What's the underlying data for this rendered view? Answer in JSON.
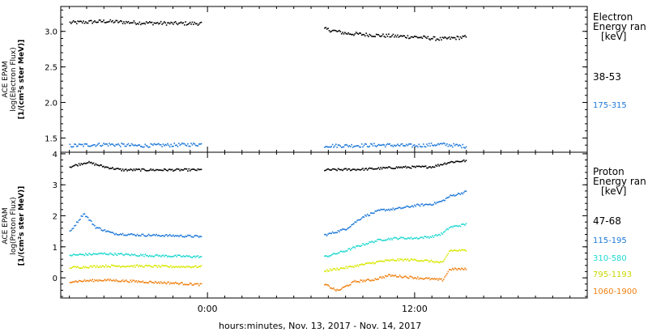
{
  "xlabel": "hours:minutes, Nov. 13, 2017 - Nov. 14, 2017",
  "x_tick_labels": [
    "0:00",
    "12:00"
  ],
  "panels": [
    {
      "ylabel_lines": [
        "ACE EPAM",
        "log(Electron Flux)",
        "[1/(cm²s ster MeV)]"
      ],
      "legend_title": [
        "Electron",
        "Energy ran",
        "[keV]"
      ],
      "series": [
        {
          "name": "38-53",
          "color": "#000000"
        },
        {
          "name": "175-315",
          "color": "#1e78d8"
        }
      ]
    },
    {
      "ylabel_lines": [
        "ACE EPAM",
        "log(Proton Flux)",
        "[1/(cm²s ster MeV)]"
      ],
      "legend_title": [
        "Proton",
        "Energy ran",
        "[keV]"
      ],
      "series": [
        {
          "name": "47-68",
          "color": "#000000"
        },
        {
          "name": "115-195",
          "color": "#1e78d8"
        },
        {
          "name": "310-580",
          "color": "#20d8d0"
        },
        {
          "name": "795-1193",
          "color": "#d8e800"
        },
        {
          "name": "1060-1900",
          "color": "#f08010"
        }
      ]
    }
  ],
  "chart_data": [
    {
      "type": "scatter",
      "title": "",
      "ylabel": "ACE EPAM log(Electron Flux) [1/(cm²s ster MeV)]",
      "xlabel": "hours:minutes, Nov. 13, 2017 - Nov. 14, 2017",
      "x_unit": "hours relative to 0:00 Nov. 14, 2017",
      "xlim": [
        -8.5,
        22
      ],
      "ylim": [
        1.3,
        3.35
      ],
      "y_ticks": [
        "1.5",
        "2.0",
        "2.5",
        "3.0"
      ],
      "gap": [
        -0.35,
        6.7
      ],
      "series": [
        {
          "name": "38-53",
          "color": "#000000",
          "x": [
            -8,
            -6,
            -4,
            -2,
            -0.4,
            6.8,
            8,
            10,
            12,
            13.5,
            15
          ],
          "y": [
            3.13,
            3.15,
            3.13,
            3.12,
            3.12,
            3.04,
            2.98,
            2.95,
            2.93,
            2.9,
            2.93
          ]
        },
        {
          "name": "175-315",
          "color": "#1e78d8",
          "x": [
            -8,
            -6,
            -4,
            -2,
            -0.4,
            6.8,
            8,
            10,
            12,
            13.5,
            15
          ],
          "y": [
            1.4,
            1.42,
            1.4,
            1.41,
            1.42,
            1.4,
            1.4,
            1.41,
            1.4,
            1.42,
            1.39
          ]
        }
      ]
    },
    {
      "type": "scatter",
      "title": "",
      "ylabel": "ACE EPAM log(Proton Flux) [1/(cm²s ster MeV)]",
      "xlabel": "hours:minutes, Nov. 13, 2017 - Nov. 14, 2017",
      "x_unit": "hours relative to 0:00 Nov. 14, 2017",
      "xlim": [
        -8.5,
        22
      ],
      "ylim": [
        -0.65,
        4.05
      ],
      "y_ticks": [
        "0",
        "1",
        "2",
        "3",
        "4"
      ],
      "gap": [
        -0.35,
        6.7
      ],
      "series": [
        {
          "name": "47-68",
          "color": "#000000",
          "x": [
            -8,
            -7,
            -6,
            -5,
            -3,
            -1,
            -0.4,
            6.8,
            9,
            11,
            13,
            14,
            15
          ],
          "y": [
            3.6,
            3.75,
            3.6,
            3.5,
            3.5,
            3.5,
            3.5,
            3.5,
            3.52,
            3.58,
            3.6,
            3.75,
            3.8
          ]
        },
        {
          "name": "115-195",
          "color": "#1e78d8",
          "x": [
            -8,
            -7.2,
            -6.5,
            -5.5,
            -4,
            -2,
            -0.4,
            6.8,
            8,
            9,
            10,
            11,
            12,
            13,
            13.6,
            14,
            15
          ],
          "y": [
            1.5,
            2.1,
            1.65,
            1.45,
            1.4,
            1.38,
            1.35,
            1.4,
            1.6,
            2.0,
            2.2,
            2.25,
            2.35,
            2.4,
            2.5,
            2.65,
            2.8
          ]
        },
        {
          "name": "310-580",
          "color": "#20d8d0",
          "x": [
            -8,
            -6,
            -4,
            -2,
            -0.4,
            6.8,
            8,
            9,
            10,
            11,
            12,
            13,
            13.6,
            14,
            15
          ],
          "y": [
            0.75,
            0.8,
            0.75,
            0.72,
            0.7,
            0.7,
            0.9,
            1.1,
            1.25,
            1.3,
            1.3,
            1.35,
            1.45,
            1.65,
            1.75
          ]
        },
        {
          "name": "795-1193",
          "color": "#d8e800",
          "x": [
            -8,
            -6,
            -4,
            -2,
            -0.4,
            6.8,
            8,
            9,
            10,
            11,
            12,
            13,
            13.6,
            14,
            15
          ],
          "y": [
            0.35,
            0.4,
            0.4,
            0.38,
            0.38,
            0.25,
            0.35,
            0.45,
            0.55,
            0.6,
            0.6,
            0.55,
            0.5,
            0.9,
            0.9
          ]
        },
        {
          "name": "1060-1900",
          "color": "#f08010",
          "x": [
            -8,
            -6,
            -4,
            -2,
            -0.4,
            6.8,
            7.5,
            8.5,
            9.5,
            10.5,
            11.5,
            12.5,
            13.6,
            14,
            15
          ],
          "y": [
            -0.1,
            -0.05,
            -0.1,
            -0.15,
            -0.2,
            -0.2,
            -0.4,
            -0.1,
            -0.05,
            0.1,
            0.05,
            0.0,
            -0.05,
            0.3,
            0.3
          ]
        }
      ]
    }
  ]
}
